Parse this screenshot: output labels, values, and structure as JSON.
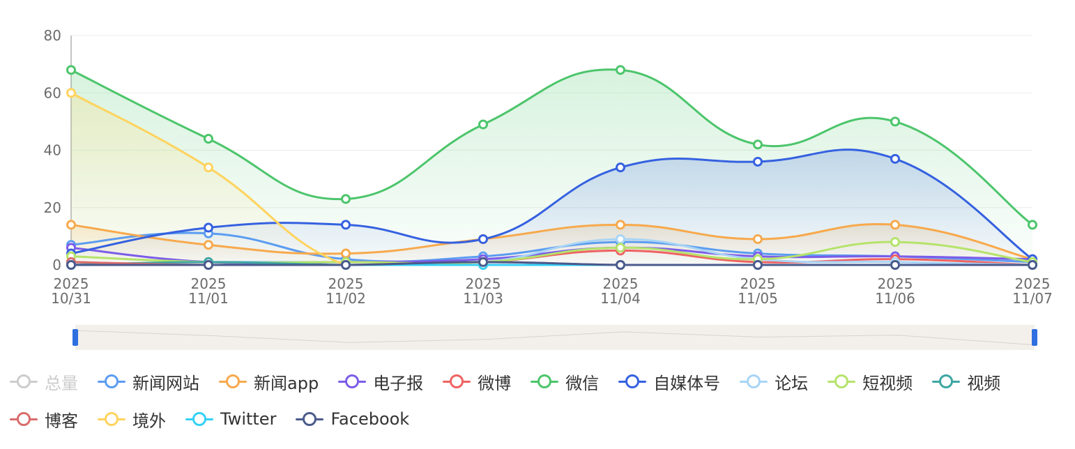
{
  "chart_data": {
    "type": "line",
    "smooth": true,
    "x": [
      "2025\n10/31",
      "2025\n11/01",
      "2025\n11/02",
      "2025\n11/03",
      "2025\n11/04",
      "2025\n11/05",
      "2025\n11/06",
      "2025\n11/07"
    ],
    "x_labels": [
      [
        "2025",
        "10/31"
      ],
      [
        "2025",
        "11/01"
      ],
      [
        "2025",
        "11/02"
      ],
      [
        "2025",
        "11/03"
      ],
      [
        "2025",
        "11/04"
      ],
      [
        "2025",
        "11/05"
      ],
      [
        "2025",
        "11/06"
      ],
      [
        "2025",
        "11/07"
      ]
    ],
    "ylim": [
      0,
      80
    ],
    "yticks": [
      0,
      20,
      40,
      60,
      80
    ],
    "grid": true,
    "legend_position": "bottom",
    "series": [
      {
        "name": "总量",
        "color": "#c8c8c8",
        "visible": false,
        "values": [
          null,
          null,
          null,
          null,
          null,
          null,
          null,
          null
        ]
      },
      {
        "name": "新闻网站",
        "color": "#5b9cf0",
        "visible": true,
        "values": [
          7,
          11,
          2,
          3,
          8,
          4,
          3,
          1
        ]
      },
      {
        "name": "新闻app",
        "color": "#f7a94c",
        "visible": true,
        "area": true,
        "values": [
          14,
          7,
          4,
          9,
          14,
          9,
          14,
          2
        ]
      },
      {
        "name": "电子报",
        "color": "#7c5ce8",
        "visible": true,
        "values": [
          6,
          1,
          1,
          2,
          6,
          3,
          3,
          2
        ]
      },
      {
        "name": "微博",
        "color": "#ef6262",
        "visible": true,
        "values": [
          1,
          0,
          0,
          1,
          5,
          1,
          2,
          0
        ]
      },
      {
        "name": "微信",
        "color": "#4cc56b",
        "visible": true,
        "area": true,
        "values": [
          68,
          44,
          23,
          49,
          68,
          42,
          50,
          14
        ]
      },
      {
        "name": "自媒体号",
        "color": "#3561e0",
        "visible": true,
        "area": true,
        "values": [
          4,
          13,
          14,
          9,
          34,
          36,
          37,
          2
        ]
      },
      {
        "name": "论坛",
        "color": "#a8d4f5",
        "visible": true,
        "values": [
          0,
          1,
          1,
          1,
          9,
          2,
          1,
          0
        ]
      },
      {
        "name": "短视频",
        "color": "#b5e36a",
        "visible": true,
        "values": [
          3,
          1,
          1,
          1,
          6,
          2,
          8,
          1
        ]
      },
      {
        "name": "视频",
        "color": "#3ea6a3",
        "visible": true,
        "values": [
          0,
          1,
          0,
          0,
          0,
          0,
          0,
          0
        ]
      },
      {
        "name": "博客",
        "color": "#d96c6c",
        "visible": true,
        "values": [
          1,
          0,
          0,
          1,
          0,
          0,
          0,
          0
        ]
      },
      {
        "name": "境外",
        "color": "#ffd35e",
        "visible": true,
        "area": true,
        "values": [
          60,
          34,
          0,
          0,
          0,
          0,
          0,
          0
        ]
      },
      {
        "name": "Twitter",
        "color": "#35d0f5",
        "visible": true,
        "values": [
          0,
          0,
          0,
          0,
          0,
          0,
          0,
          0
        ]
      },
      {
        "name": "Facebook",
        "color": "#4a5a8c",
        "visible": true,
        "values": [
          0,
          0,
          0,
          1,
          0,
          0,
          0,
          0
        ]
      }
    ],
    "legend_rows": [
      [
        0,
        1,
        2,
        3,
        4,
        5,
        6,
        7,
        8,
        9
      ],
      [
        10,
        11,
        12,
        13
      ]
    ],
    "datazoom": {
      "start": 0,
      "end": 100,
      "handle_color": "#2f6fe0",
      "track_color": "#f3efea"
    }
  }
}
